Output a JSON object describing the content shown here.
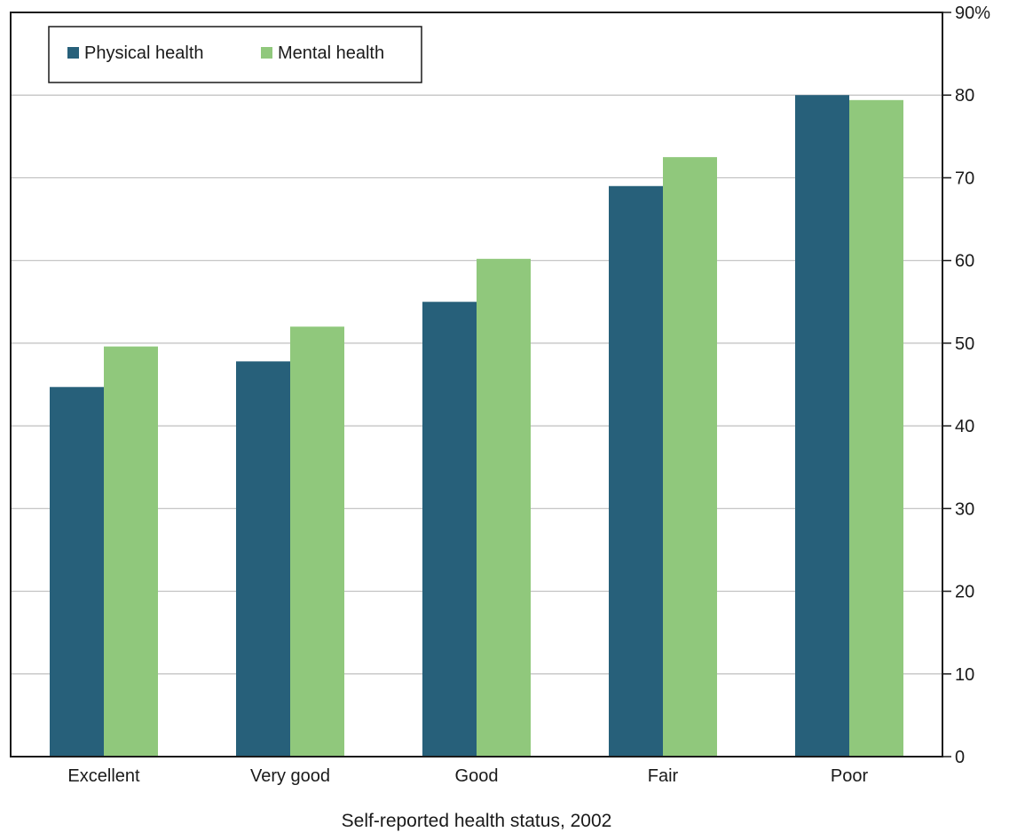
{
  "chart_data": {
    "type": "bar",
    "categories": [
      "Excellent",
      "Very good",
      "Good",
      "Fair",
      "Poor"
    ],
    "series": [
      {
        "name": "Physical health",
        "values": [
          44.7,
          47.8,
          55,
          69,
          80
        ],
        "color": "#27607a"
      },
      {
        "name": "Mental health",
        "values": [
          49.6,
          52,
          60.2,
          72.5,
          79.4
        ],
        "color": "#90c87c"
      }
    ],
    "title": "",
    "xlabel": "Self-reported health status, 2002",
    "ylabel": "",
    "ylim": [
      0,
      90
    ],
    "yticks": [
      0,
      10,
      20,
      30,
      40,
      50,
      60,
      70,
      80,
      90
    ],
    "ytick_labels": [
      "0",
      "10",
      "20",
      "30",
      "40",
      "50",
      "60",
      "70",
      "80",
      "90%"
    ],
    "y_axis_side": "right",
    "grid": true,
    "legend_position": "top-left"
  }
}
